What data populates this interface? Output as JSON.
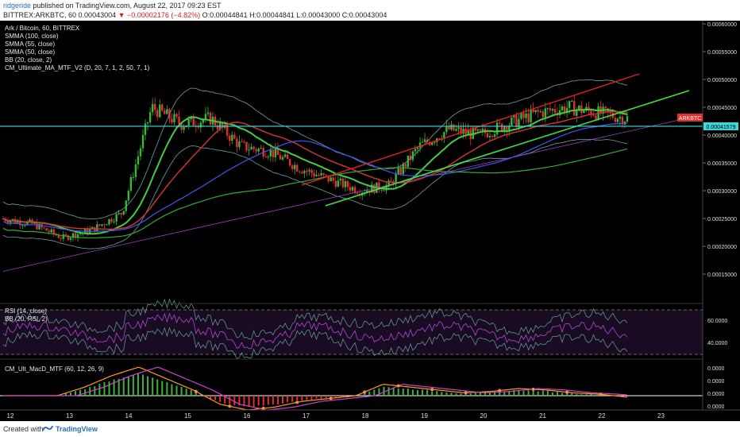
{
  "header": {
    "author": "ridgeride",
    "published": "published on TradingView.com, August 22, 2017 09:23 EST",
    "symbol": "BITTREX:ARKBTC, 60",
    "last": "0.00043004",
    "change": "▼ −0.00002176 (−4.82%)",
    "ohlc": "O:0.00044841 H:0.00044841 L:0.00043000 C:0.00043004"
  },
  "legend": [
    "Ark / Bitcoin, 60, BITTREX",
    "SMMA (100, close)",
    "SMMA (55, close)",
    "SMMA (50, close)",
    "BB (20, close, 2)",
    "CM_Ultimate_MA_MTF_V2 (D, 20, 7, 1, 2, 50, 7, 1)"
  ],
  "rsi_legend": [
    "RSI (14, close)",
    "BB (20, RSI, 2)"
  ],
  "macd_legend": "CM_Ult_MacD_MTF (60, 12, 26, 9)",
  "price_badge": {
    "label": "ARKBTC",
    "value": "0.00041579"
  },
  "footer": {
    "created": "Created with",
    "brand": "TradingView"
  },
  "colors": {
    "background": "#000000",
    "up_candle": "#3cb43c",
    "down_candle": "#e03030",
    "bb": "#6aa3a0",
    "hline": "#3fd8d8",
    "channel_red": "#e02020",
    "channel_green": "#44dd44",
    "badge": "#e03030"
  },
  "chart_data": {
    "type": "line",
    "x": [
      "12",
      "13",
      "14",
      "15",
      "16",
      "17",
      "18",
      "19",
      "20",
      "21",
      "22",
      "23"
    ],
    "price": [
      0.00025,
      0.00024,
      0.000215,
      0.00023,
      0.00026,
      0.00045,
      0.00042,
      0.00043,
      0.00038,
      0.00037,
      0.00034,
      0.00032,
      0.0003,
      0.00031,
      0.00038,
      0.00041,
      0.0004,
      0.00042,
      0.00044,
      0.00045,
      0.00044,
      0.00043
    ],
    "horizontal_level": 0.00041579,
    "price_axis": {
      "ylim": [
        0.0001,
        0.0006
      ],
      "ticks": [
        "0.00060000",
        "0.00055000",
        "0.00050000",
        "0.00045000",
        "0.00040000",
        "0.00035000",
        "0.00030000",
        "0.00025000",
        "0.00020000",
        "0.00015000"
      ]
    },
    "rsi_axis": {
      "ticks": [
        "60.0000",
        "40.0000"
      ]
    },
    "macd_axis": {
      "ticks": [
        "0.0000",
        "0.0000",
        "0.0000",
        "0.0000"
      ]
    },
    "macd_hist": [
      0,
      0,
      0,
      0.3,
      0.7,
      1.0,
      0.6,
      0.2,
      -0.3,
      -0.5,
      -0.4,
      -0.2,
      -0.1,
      0.0,
      0.4,
      0.3,
      0.2,
      0.1,
      0.15,
      0.25,
      0.2,
      0.1,
      0.05,
      -0.05
    ]
  }
}
